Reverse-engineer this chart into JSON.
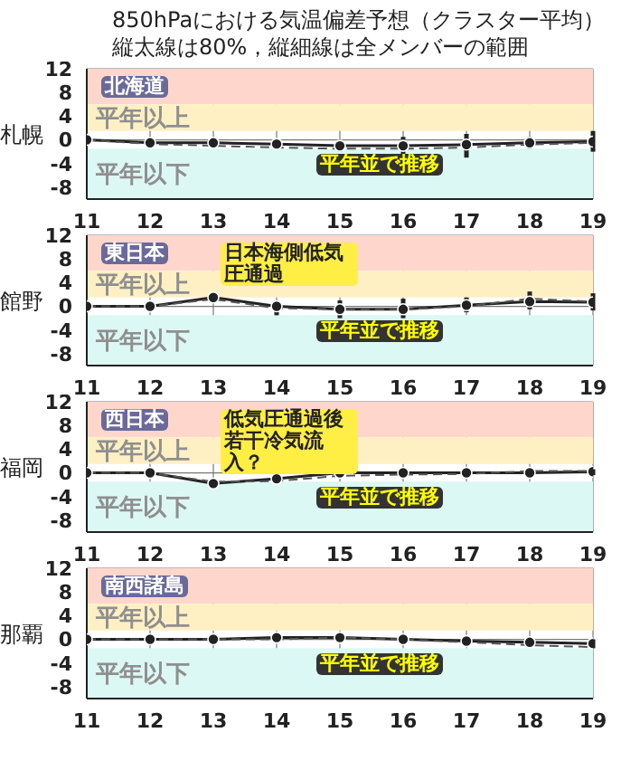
{
  "chart_data": [
    {
      "type": "line",
      "title": "850hPaにおける気温偏差予想（クラスター平均）",
      "subtitle": "縦太線は80%，縦細線は全メンバーの範囲",
      "ylabel": "札幌",
      "annotations": [
        "北海道",
        "平年並で推移"
      ],
      "x": [
        11,
        12,
        13,
        14,
        15,
        16,
        17,
        18,
        19
      ],
      "xlim": [
        11,
        19
      ],
      "xticks": [
        11,
        12,
        13,
        14,
        15,
        16,
        17,
        18,
        19
      ],
      "ylim": [
        -10,
        12
      ],
      "yticks": [
        12,
        8,
        4,
        0,
        -4,
        -8
      ],
      "grid": true,
      "legend": false,
      "bands": [
        {
          "axis": "y",
          "from": 6,
          "to": 12,
          "color": "#ffd6cc"
        },
        {
          "axis": "y",
          "from": 1.5,
          "to": 6,
          "label": "平年以上",
          "color": "#fff0c4"
        },
        {
          "axis": "y",
          "from": -10,
          "to": -1.5,
          "label": "平年以下",
          "color": "#dcf8f4"
        }
      ],
      "series": [
        {
          "color": "#222222",
          "marker": "circle",
          "line_style": "solid",
          "values": [
            0,
            -0.5,
            -0.5,
            -0.7,
            -1,
            -1,
            -0.8,
            -0.5,
            -0.3
          ],
          "errors": [
            null,
            [
              -0.7,
              -0.3
            ],
            [
              -0.8,
              -0.2
            ],
            [
              -1.5,
              -0.2
            ],
            [
              -2,
              -0.3
            ],
            [
              -2.5,
              0.5
            ],
            [
              -3,
              1
            ],
            [
              -1.5,
              0.5
            ],
            [
              -2,
              1.5
            ]
          ]
        },
        {
          "color": "#555555",
          "marker": "none",
          "line_style": "dashed",
          "values": [
            0,
            -0.7,
            -1,
            -1.3,
            -1.5,
            -1.5,
            -1.3,
            -0.8,
            -0.5
          ]
        }
      ]
    },
    {
      "type": "line",
      "ylabel": "館野",
      "annotations": [
        "東日本",
        "日本海側低気圧通過",
        "平年並で推移"
      ],
      "x": [
        11,
        12,
        13,
        14,
        15,
        16,
        17,
        18,
        19
      ],
      "xlim": [
        11,
        19
      ],
      "xticks": [
        11,
        12,
        13,
        14,
        15,
        16,
        17,
        18,
        19
      ],
      "ylim": [
        -10,
        12
      ],
      "yticks": [
        12,
        8,
        4,
        0,
        -4,
        -8
      ],
      "grid": true,
      "legend": false,
      "bands": [
        {
          "axis": "y",
          "from": 6,
          "to": 12,
          "color": "#ffd6cc"
        },
        {
          "axis": "y",
          "from": 1.5,
          "to": 6,
          "label": "平年以上",
          "color": "#fff0c4"
        },
        {
          "axis": "y",
          "from": -10,
          "to": -1.5,
          "label": "平年以下",
          "color": "#dcf8f4"
        }
      ],
      "series": [
        {
          "color": "#222222",
          "marker": "circle",
          "line_style": "solid",
          "values": [
            0,
            0,
            1.5,
            0,
            -0.5,
            -0.5,
            0.2,
            0.8,
            0.7
          ],
          "errors": [
            null,
            [
              -0.3,
              0.3
            ],
            [
              1,
              2
            ],
            [
              -1.5,
              1
            ],
            [
              -2,
              1
            ],
            [
              -2,
              1.3
            ],
            [
              -1,
              1.5
            ],
            [
              -0.5,
              2.5
            ],
            [
              -0.7,
              2.2
            ]
          ]
        },
        {
          "color": "#555555",
          "marker": "none",
          "line_style": "dashed",
          "values": [
            0,
            0,
            1.2,
            -0.3,
            -0.5,
            -0.5,
            0,
            1.3,
            0.8
          ]
        }
      ]
    },
    {
      "type": "line",
      "ylabel": "福岡",
      "annotations": [
        "西日本",
        "低気圧通過後若干冷気流入？",
        "平年並で推移"
      ],
      "x": [
        11,
        12,
        13,
        14,
        15,
        16,
        17,
        18,
        19
      ],
      "xlim": [
        11,
        19
      ],
      "xticks": [
        11,
        12,
        13,
        14,
        15,
        16,
        17,
        18,
        19
      ],
      "ylim": [
        -10,
        12
      ],
      "yticks": [
        12,
        8,
        4,
        0,
        -4,
        -8
      ],
      "grid": true,
      "legend": false,
      "bands": [
        {
          "axis": "y",
          "from": 6,
          "to": 12,
          "color": "#ffd6cc"
        },
        {
          "axis": "y",
          "from": 1.5,
          "to": 6,
          "label": "平年以上",
          "color": "#fff0c4"
        },
        {
          "axis": "y",
          "from": -10,
          "to": -1.5,
          "label": "平年以下",
          "color": "#dcf8f4"
        }
      ],
      "series": [
        {
          "color": "#222222",
          "marker": "circle",
          "line_style": "solid",
          "values": [
            0,
            0,
            -1.8,
            -1,
            0,
            0,
            0,
            0,
            0.2
          ],
          "errors": [
            null,
            [
              -0.3,
              0.3
            ],
            [
              -2,
              -1.6
            ],
            [
              -1.5,
              -0.5
            ],
            [
              -0.5,
              0.5
            ],
            [
              -0.5,
              0.5
            ],
            [
              -0.5,
              0.3
            ],
            [
              -0.5,
              0.7
            ],
            [
              -0.4,
              0.6
            ]
          ]
        },
        {
          "color": "#555555",
          "marker": "none",
          "line_style": "dashed",
          "values": [
            0,
            0,
            -1.5,
            -1.4,
            -0.5,
            -0.3,
            -0.2,
            0.3,
            0.3
          ]
        }
      ]
    },
    {
      "type": "line",
      "ylabel": "那覇",
      "annotations": [
        "南西諸島",
        "平年並で推移"
      ],
      "x": [
        11,
        12,
        13,
        14,
        15,
        16,
        17,
        18,
        19
      ],
      "xlim": [
        11,
        19
      ],
      "xticks": [
        11,
        12,
        13,
        14,
        15,
        16,
        17,
        18,
        19
      ],
      "ylim": [
        -10,
        12
      ],
      "yticks": [
        12,
        8,
        4,
        0,
        -4,
        -8
      ],
      "grid": true,
      "legend": false,
      "bands": [
        {
          "axis": "y",
          "from": 6,
          "to": 12,
          "color": "#ffd6cc"
        },
        {
          "axis": "y",
          "from": 1.5,
          "to": 6,
          "label": "平年以上",
          "color": "#fff0c4"
        },
        {
          "axis": "y",
          "from": -10,
          "to": -1.5,
          "label": "平年以下",
          "color": "#dcf8f4"
        }
      ],
      "series": [
        {
          "color": "#222222",
          "marker": "circle",
          "line_style": "solid",
          "values": [
            0,
            0,
            0,
            0.3,
            0.3,
            0,
            -0.3,
            -0.5,
            -0.7
          ],
          "errors": [
            null,
            null,
            null,
            [
              0,
              0.5
            ],
            [
              0,
              0.7
            ],
            [
              -0.3,
              0.2
            ],
            [
              -0.5,
              0
            ],
            [
              -0.8,
              -0.2
            ],
            [
              -1.5,
              0
            ]
          ]
        },
        {
          "color": "#555555",
          "marker": "none",
          "line_style": "dashed",
          "values": [
            0,
            0,
            0,
            0,
            0.3,
            0,
            -0.5,
            -1,
            -1.3
          ]
        }
      ]
    }
  ]
}
